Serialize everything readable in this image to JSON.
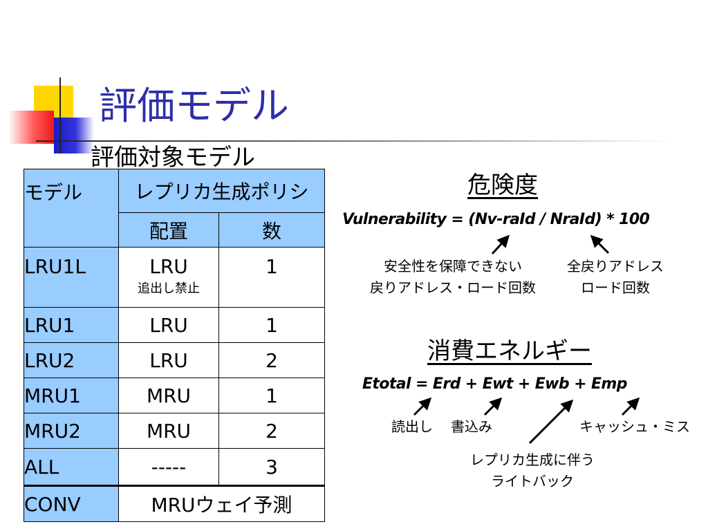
{
  "slide": {
    "title": "評価モデル",
    "subtitle": "評価対象モデル"
  },
  "table": {
    "header": {
      "model": "モデル",
      "policy": "レプリカ生成ポリシ",
      "placement": "配置",
      "count": "数"
    },
    "rows": [
      {
        "name": "LRU1L",
        "placement": "LRU",
        "note": "追出し禁止",
        "count": "1"
      },
      {
        "name": "LRU1",
        "placement": "LRU",
        "count": "1"
      },
      {
        "name": "LRU2",
        "placement": "LRU",
        "count": "2"
      },
      {
        "name": "MRU1",
        "placement": "MRU",
        "count": "1"
      },
      {
        "name": "MRU2",
        "placement": "MRU",
        "count": "2"
      },
      {
        "name": "ALL",
        "placement": "-----",
        "count": "3"
      }
    ],
    "conv": {
      "name": "CONV",
      "policy": "MRUウェイ予測"
    }
  },
  "vulnerability": {
    "heading": "危険度",
    "formula": "Vulnerability = (Nv-raId / NraId) * 100",
    "label_left_line1": "安全性を保障できない",
    "label_left_line2": "戻りアドレス・ロード回数",
    "label_right_line1": "全戻りアドレス",
    "label_right_line2": "ロード回数"
  },
  "energy": {
    "heading": "消費エネルギー",
    "formula": "Etotal = Erd + Ewt + Ewb + Emp",
    "label_read": "読出し",
    "label_write": "書込み",
    "label_miss": "キャッシュ・ミス",
    "label_wb_line1": "レプリカ生成に伴う",
    "label_wb_line2": "ライトバック"
  }
}
